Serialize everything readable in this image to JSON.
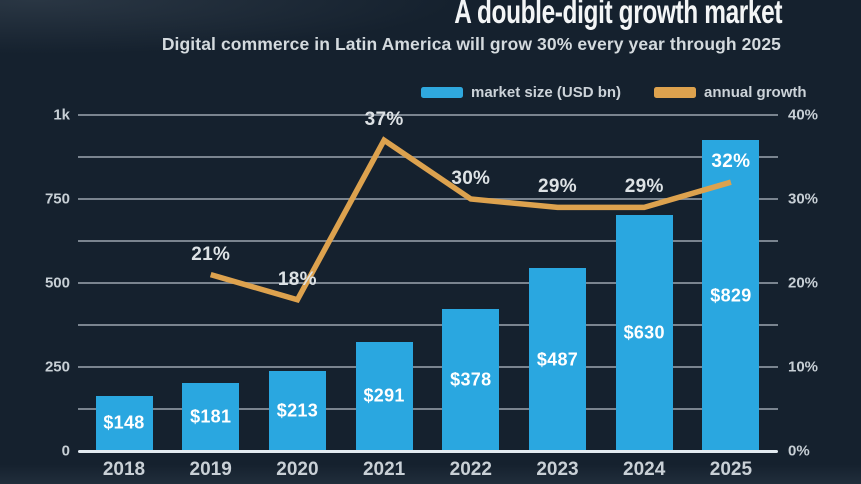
{
  "header": {
    "title": "A double-digit growth market",
    "subtitle": "Digital commerce in Latin America will grow 30% every year through 2025"
  },
  "legend": {
    "items": [
      {
        "label": "market size (USD bn)",
        "color": "#2fa8de"
      },
      {
        "label": "annual growth",
        "color": "#dda24e"
      }
    ]
  },
  "chart_data": {
    "type": "bar+line",
    "title": "A double-digit growth market",
    "subtitle": "Digital commerce in Latin America will grow 30% every year through 2025",
    "categories": [
      "2018",
      "2019",
      "2020",
      "2021",
      "2022",
      "2023",
      "2024",
      "2025"
    ],
    "series": [
      {
        "name": "market size (USD bn)",
        "type": "bar",
        "axis": "left",
        "color": "#2aa7e0",
        "values": [
          148,
          181,
          213,
          291,
          378,
          487,
          630,
          829
        ],
        "value_labels": [
          "$148",
          "$181",
          "$213",
          "$291",
          "$378",
          "$487",
          "$630",
          "$829"
        ],
        "value_label_color": "#ffffff"
      },
      {
        "name": "annual growth",
        "type": "line",
        "axis": "right",
        "color": "#dda24e",
        "points": [
          {
            "x": "2019",
            "y": 21,
            "label": "21%"
          },
          {
            "x": "2020",
            "y": 18,
            "label": "18%"
          },
          {
            "x": "2021",
            "y": 37,
            "label": "37%"
          },
          {
            "x": "2022",
            "y": 30,
            "label": "30%"
          },
          {
            "x": "2023",
            "y": 29,
            "label": "29%"
          },
          {
            "x": "2024",
            "y": 29,
            "label": "29%"
          },
          {
            "x": "2025",
            "y": 32,
            "label": "32%",
            "label_color": "#ffffff"
          }
        ],
        "point_label_color": "#dde2e5"
      }
    ],
    "left_axis": {
      "min": 0,
      "max": 1000,
      "gridline_step": 125,
      "ticks": [
        {
          "value": 0,
          "label": "0"
        },
        {
          "value": 250,
          "label": "250"
        },
        {
          "value": 500,
          "label": "500"
        },
        {
          "value": 750,
          "label": "750"
        },
        {
          "value": 1000,
          "label": "1k"
        }
      ]
    },
    "right_axis": {
      "min": 0,
      "max": 40,
      "gridline_step": 5,
      "ticks": [
        {
          "value": 0,
          "label": "0%"
        },
        {
          "value": 10,
          "label": "10%"
        },
        {
          "value": 20,
          "label": "20%"
        },
        {
          "value": 30,
          "label": "30%"
        },
        {
          "value": 40,
          "label": "40%"
        }
      ]
    },
    "grid": true,
    "legend_position": "top",
    "colors": {
      "background": "#15212e",
      "gridline": "rgba(223,232,240,0.5)",
      "zero_line": "#e2eaf0",
      "axis_tick_label": "#c7cfd5",
      "x_tick_label": "#c9d0d6"
    }
  }
}
